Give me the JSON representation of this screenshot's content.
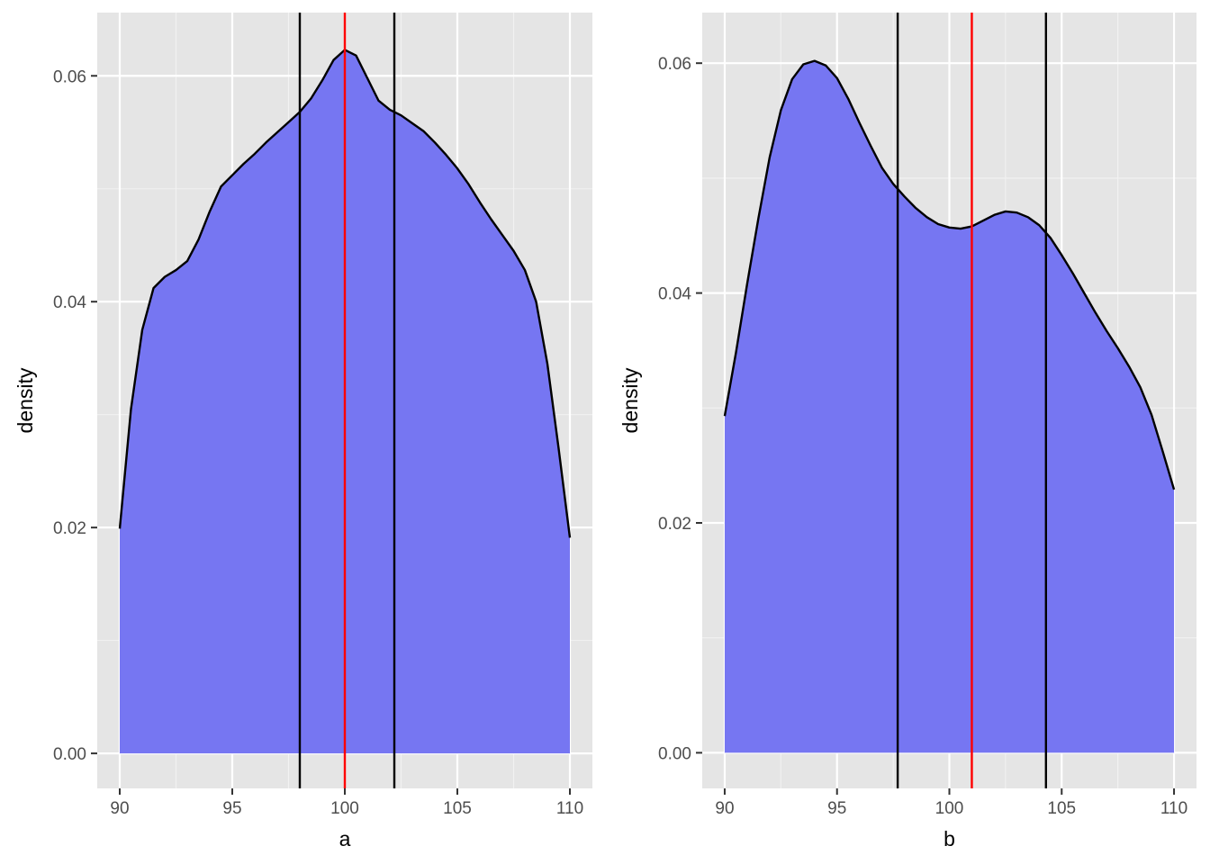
{
  "chart_data": [
    {
      "type": "area",
      "xlabel": "a",
      "ylabel": "density",
      "xlim": [
        89,
        111
      ],
      "ylim": [
        -0.0031,
        0.0656
      ],
      "x_ticks": [
        90,
        95,
        100,
        105,
        110
      ],
      "x_tick_labels": [
        "90",
        "95",
        "100",
        "105",
        "110"
      ],
      "y_ticks": [
        0.0,
        0.02,
        0.04,
        0.06
      ],
      "y_tick_labels": [
        "0.00",
        "0.02",
        "0.04",
        "0.06"
      ],
      "grid": true,
      "fill_color": "#7373f2",
      "line_color": "#000000",
      "density": {
        "x": [
          90,
          90.5,
          91,
          91.5,
          92,
          92.5,
          93,
          93.5,
          94,
          94.5,
          95,
          95.5,
          96,
          96.5,
          97,
          97.5,
          98,
          98.5,
          99,
          99.5,
          100,
          100.5,
          101,
          101.5,
          102,
          102.5,
          103,
          103.5,
          104,
          104.5,
          105,
          105.5,
          106,
          106.5,
          107,
          107.5,
          108,
          108.5,
          109,
          109.5,
          110
        ],
        "y": [
          0.0199,
          0.0305,
          0.0375,
          0.0412,
          0.0422,
          0.0428,
          0.0436,
          0.0455,
          0.048,
          0.0502,
          0.0512,
          0.0522,
          0.0531,
          0.0541,
          0.055,
          0.0559,
          0.0568,
          0.058,
          0.0596,
          0.0614,
          0.0623,
          0.0618,
          0.0598,
          0.0578,
          0.057,
          0.0565,
          0.0558,
          0.0551,
          0.0541,
          0.053,
          0.0518,
          0.0504,
          0.0488,
          0.0473,
          0.0459,
          0.0445,
          0.0428,
          0.04,
          0.0345,
          0.027,
          0.0191
        ]
      },
      "vlines": [
        {
          "x": 98.0,
          "color": "#000000"
        },
        {
          "x": 100.0,
          "color": "#ff0000"
        },
        {
          "x": 102.2,
          "color": "#000000"
        }
      ]
    },
    {
      "type": "area",
      "xlabel": "b",
      "ylabel": "density",
      "xlim": [
        89,
        111
      ],
      "ylim": [
        -0.0031,
        0.0644
      ],
      "x_ticks": [
        90,
        95,
        100,
        105,
        110
      ],
      "x_tick_labels": [
        "90",
        "95",
        "100",
        "105",
        "110"
      ],
      "y_ticks": [
        0.0,
        0.02,
        0.04,
        0.06
      ],
      "y_tick_labels": [
        "0.00",
        "0.02",
        "0.04",
        "0.06"
      ],
      "grid": true,
      "fill_color": "#7373f2",
      "line_color": "#000000",
      "density": {
        "x": [
          90,
          90.5,
          91,
          91.5,
          92,
          92.5,
          93,
          93.5,
          94,
          94.5,
          95,
          95.5,
          96,
          96.5,
          97,
          97.5,
          98,
          98.5,
          99,
          99.5,
          100,
          100.5,
          101,
          101.5,
          102,
          102.5,
          103,
          103.5,
          104,
          104.5,
          105,
          105.5,
          106,
          106.5,
          107,
          107.5,
          108,
          108.5,
          109,
          109.5,
          110
        ],
        "y": [
          0.0293,
          0.0348,
          0.0408,
          0.0465,
          0.0518,
          0.0559,
          0.0586,
          0.0599,
          0.0602,
          0.0598,
          0.0587,
          0.0569,
          0.0548,
          0.0528,
          0.0509,
          0.0495,
          0.0484,
          0.0474,
          0.0466,
          0.046,
          0.0457,
          0.0456,
          0.0458,
          0.0463,
          0.0468,
          0.0471,
          0.047,
          0.0466,
          0.0459,
          0.0448,
          0.0433,
          0.0417,
          0.04,
          0.0383,
          0.0367,
          0.0352,
          0.0336,
          0.0318,
          0.0294,
          0.0262,
          0.0229
        ]
      },
      "vlines": [
        {
          "x": 97.7,
          "color": "#000000"
        },
        {
          "x": 101.0,
          "color": "#ff0000"
        },
        {
          "x": 104.3,
          "color": "#000000"
        }
      ]
    }
  ]
}
